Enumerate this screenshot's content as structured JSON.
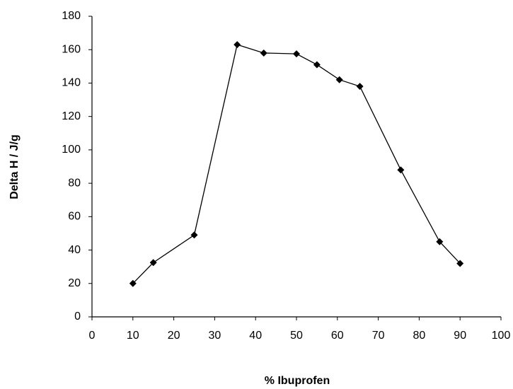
{
  "chart_data": {
    "type": "line",
    "x_label": "% Ibuprofen",
    "y_label": "Delta H / J/g",
    "x": [
      10,
      15,
      25,
      35.5,
      42,
      50,
      55,
      60.5,
      65.5,
      75.5,
      85,
      90
    ],
    "values": [
      20,
      32.5,
      49,
      163,
      158,
      157.5,
      151,
      142,
      138,
      88,
      45,
      32
    ],
    "color": "#000000",
    "xlim": [
      0,
      100
    ],
    "xticks": [
      0,
      10,
      20,
      30,
      40,
      50,
      60,
      70,
      80,
      90,
      100
    ],
    "ylim": [
      0,
      180
    ],
    "yticks": [
      0,
      20,
      40,
      60,
      80,
      100,
      120,
      140,
      160,
      180
    ]
  }
}
